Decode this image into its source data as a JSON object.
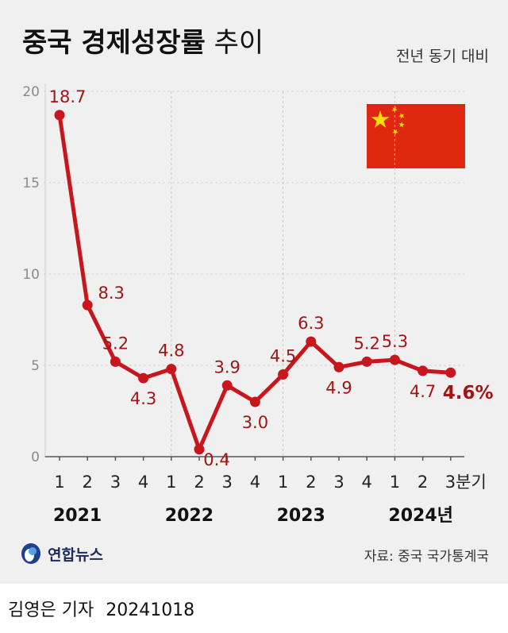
{
  "header": {
    "title_bold": "중국 경제성장률",
    "title_light": "추이",
    "unit": "전년 동기 대비"
  },
  "footer": {
    "logo_text": "연합뉴스",
    "source": "자료: 중국 국가통계국",
    "byline_name": "김영은 기자",
    "byline_date": "20241018"
  },
  "colors": {
    "line": "#c8161d",
    "label": "#a31515",
    "flag_red": "#de2910",
    "flag_star": "#ffde00"
  },
  "chart_data": {
    "type": "line",
    "title": "중국 경제성장률 추이",
    "unit_label": "전년 동기 대비",
    "ylim": [
      0,
      20
    ],
    "yticks": [
      0,
      5,
      10,
      15,
      20
    ],
    "x_ticks": [
      "1",
      "2",
      "3",
      "4",
      "1",
      "2",
      "3",
      "4",
      "1",
      "2",
      "3",
      "4",
      "1",
      "2",
      "3분기"
    ],
    "years": [
      "2021",
      "2022",
      "2023",
      "2024년"
    ],
    "series": [
      {
        "values": [
          18.7,
          8.3,
          5.2,
          4.3,
          4.8,
          0.4,
          3.9,
          3.0,
          4.5,
          6.3,
          4.9,
          5.2,
          5.3,
          4.7,
          4.6
        ],
        "labels": [
          "18.7",
          "8.3",
          "5.2",
          "4.3",
          "4.8",
          "0.4",
          "3.9",
          "3.0",
          "4.5",
          "6.3",
          "4.9",
          "5.2",
          "5.3",
          "4.7",
          "4.6%"
        ]
      }
    ]
  }
}
